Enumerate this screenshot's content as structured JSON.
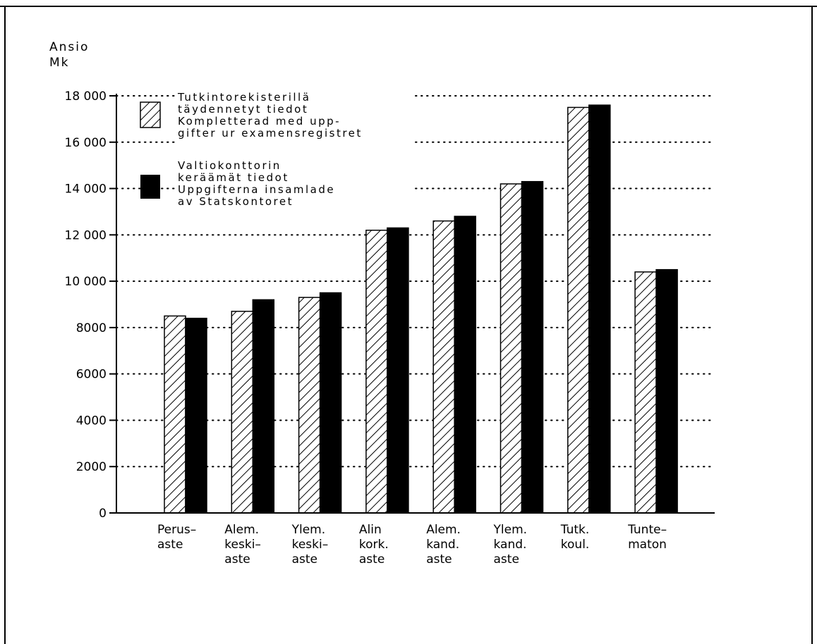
{
  "chart_data": {
    "type": "bar",
    "title": "",
    "ylabel": [
      "Ansio",
      "Mk"
    ],
    "xlabel": "",
    "ylim": [
      0,
      18000
    ],
    "yticks": [
      0,
      2000,
      4000,
      6000,
      8000,
      10000,
      12000,
      14000,
      16000,
      18000
    ],
    "ytick_labels": [
      "0",
      "2000",
      "4000",
      "6000",
      "8000",
      "10 000",
      "12 000",
      "14 000",
      "16 000",
      "18 000"
    ],
    "grid": "horizontal dotted",
    "legend_position": "top-left",
    "categories": [
      [
        "Perus–",
        "aste"
      ],
      [
        "Alem.",
        "keski–",
        "aste"
      ],
      [
        "Ylem.",
        "keski–",
        "aste"
      ],
      [
        "Alin",
        "kork.",
        "aste"
      ],
      [
        "Alem.",
        "kand.",
        "aste"
      ],
      [
        "Ylem.",
        "kand.",
        "aste"
      ],
      [
        "Tutk.",
        "koul."
      ],
      [
        "Tunte–",
        "maton"
      ]
    ],
    "series": [
      {
        "name": [
          "Tutkintorekisterillä",
          "täydennetyt tiedot",
          "Kompletterad med upp-",
          "gifter ur examensregistret"
        ],
        "pattern": "hatched",
        "values": [
          8500,
          8700,
          9300,
          12200,
          12600,
          14200,
          17500,
          10400
        ]
      },
      {
        "name": [
          "Valtiokonttorin",
          "keräämät tiedot",
          "Uppgifterna insamlade",
          "av Statskontoret"
        ],
        "pattern": "solid",
        "color": "#000000",
        "values": [
          8400,
          9200,
          9500,
          12300,
          12800,
          14300,
          17600,
          10500
        ]
      }
    ]
  }
}
